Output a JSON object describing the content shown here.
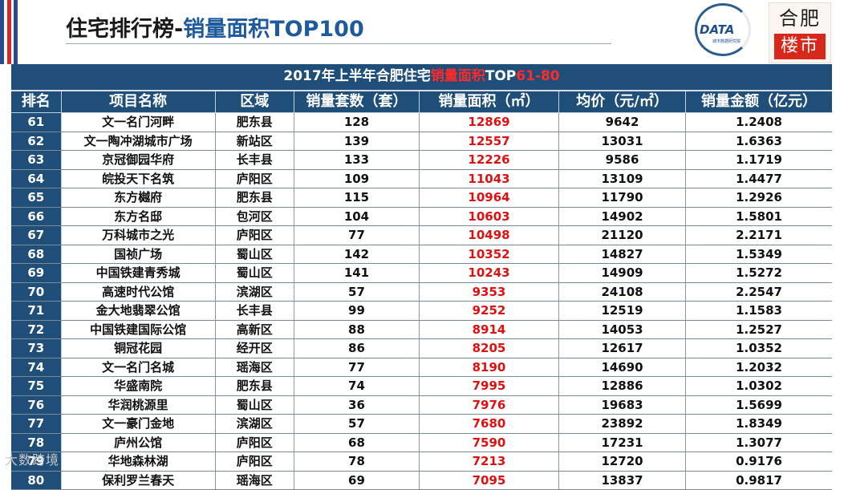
{
  "header": {
    "title_main": "住宅排行榜-",
    "title_accent": "销量面积TOP100"
  },
  "logos": {
    "data_logo_text": "DATA",
    "data_logo_sub": "城市数据研究院",
    "city_logo_line1": "合肥",
    "city_logo_line2": "楼市"
  },
  "table": {
    "banner_prefix": "2017年上半年合肥住宅",
    "banner_highlight": "销量面积",
    "banner_suffix": "TOP",
    "banner_range": "61-80",
    "columns": [
      "排名",
      "项目名称",
      "区域",
      "销量套数（套）",
      "销量面积（㎡）",
      "均价（元/㎡）",
      "销量金额（亿元）"
    ],
    "rows": [
      {
        "rank": "61",
        "name": "文一名门河畔",
        "district": "肥东县",
        "units": "128",
        "area": "12869",
        "price": "9642",
        "amount": "1.2408"
      },
      {
        "rank": "62",
        "name": "文一陶冲湖城市广场",
        "district": "新站区",
        "units": "139",
        "area": "12557",
        "price": "13031",
        "amount": "1.6363"
      },
      {
        "rank": "63",
        "name": "京冠御园华府",
        "district": "长丰县",
        "units": "133",
        "area": "12226",
        "price": "9586",
        "amount": "1.1719"
      },
      {
        "rank": "64",
        "name": "皖投天下名筑",
        "district": "庐阳区",
        "units": "109",
        "area": "11043",
        "price": "13109",
        "amount": "1.4477"
      },
      {
        "rank": "65",
        "name": "东方樾府",
        "district": "肥东县",
        "units": "115",
        "area": "10964",
        "price": "11790",
        "amount": "1.2926"
      },
      {
        "rank": "66",
        "name": "东方名邸",
        "district": "包河区",
        "units": "104",
        "area": "10603",
        "price": "14902",
        "amount": "1.5801"
      },
      {
        "rank": "67",
        "name": "万科城市之光",
        "district": "庐阳区",
        "units": "77",
        "area": "10498",
        "price": "21120",
        "amount": "2.2171"
      },
      {
        "rank": "68",
        "name": "国祯广场",
        "district": "蜀山区",
        "units": "142",
        "area": "10352",
        "price": "14827",
        "amount": "1.5349"
      },
      {
        "rank": "69",
        "name": "中国铁建青秀城",
        "district": "蜀山区",
        "units": "141",
        "area": "10243",
        "price": "14909",
        "amount": "1.5272"
      },
      {
        "rank": "70",
        "name": "高速时代公馆",
        "district": "滨湖区",
        "units": "57",
        "area": "9353",
        "price": "24108",
        "amount": "2.2547"
      },
      {
        "rank": "71",
        "name": "金大地翡翠公馆",
        "district": "长丰县",
        "units": "99",
        "area": "9252",
        "price": "12519",
        "amount": "1.1583"
      },
      {
        "rank": "72",
        "name": "中国铁建国际公馆",
        "district": "高新区",
        "units": "88",
        "area": "8914",
        "price": "14053",
        "amount": "1.2527"
      },
      {
        "rank": "73",
        "name": "铜冠花园",
        "district": "经开区",
        "units": "86",
        "area": "8205",
        "price": "12617",
        "amount": "1.0352"
      },
      {
        "rank": "74",
        "name": "文一名门名城",
        "district": "瑶海区",
        "units": "77",
        "area": "8190",
        "price": "14690",
        "amount": "1.2032"
      },
      {
        "rank": "75",
        "name": "华盛南院",
        "district": "肥东县",
        "units": "74",
        "area": "7995",
        "price": "12886",
        "amount": "1.0302"
      },
      {
        "rank": "76",
        "name": "华润桃源里",
        "district": "蜀山区",
        "units": "36",
        "area": "7976",
        "price": "19683",
        "amount": "1.5699"
      },
      {
        "rank": "77",
        "name": "文一豪门金地",
        "district": "滨湖区",
        "units": "57",
        "area": "7680",
        "price": "23892",
        "amount": "1.8349"
      },
      {
        "rank": "78",
        "name": "庐州公馆",
        "district": "庐阳区",
        "units": "68",
        "area": "7590",
        "price": "17231",
        "amount": "1.3077"
      },
      {
        "rank": "79",
        "name": "华地森林湖",
        "district": "庐阳区",
        "units": "78",
        "area": "7213",
        "price": "12720",
        "amount": "0.9176"
      },
      {
        "rank": "80",
        "name": "保利罗兰春天",
        "district": "瑶海区",
        "units": "69",
        "area": "7095",
        "price": "13837",
        "amount": "0.9817"
      }
    ]
  },
  "watermark": "大数跨境",
  "colors": {
    "header_bg": "#1f4e79",
    "highlight_red": "#e01010",
    "title_accent": "#1e5a9c"
  }
}
